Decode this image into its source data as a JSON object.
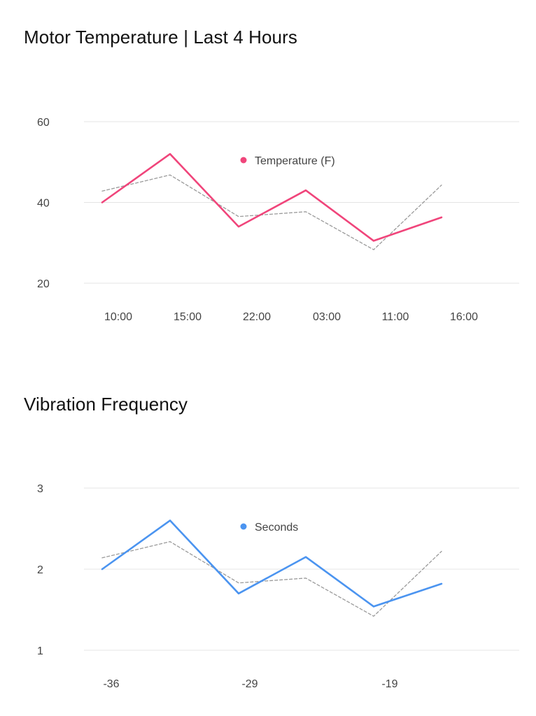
{
  "chart_data": [
    {
      "type": "line",
      "title": "Motor Temperature | Last 4 Hours",
      "categories": [
        "10:00",
        "15:00",
        "22:00",
        "03:00",
        "11:00",
        "16:00"
      ],
      "yticks": [
        "60",
        "40",
        "20"
      ],
      "ylim": [
        20,
        60
      ],
      "series": [
        {
          "name": "Temperature (F)",
          "color": "#f0457b",
          "style": "solid",
          "values": [
            40,
            52,
            34,
            43,
            30.5,
            36.3
          ]
        },
        {
          "name": "trend",
          "color": "#9a9a9a",
          "style": "dashed",
          "values": [
            42.8,
            46.8,
            36.5,
            37.7,
            28.3,
            44.3
          ]
        }
      ],
      "legend": {
        "label": "Temperature (F)",
        "placement": "top-center"
      }
    },
    {
      "type": "line",
      "title": "Vibration Frequency",
      "categories": [
        "-36",
        "",
        "-29",
        "",
        "-19",
        ""
      ],
      "yticks": [
        "3",
        "2",
        "1"
      ],
      "ylim": [
        1,
        3
      ],
      "series": [
        {
          "name": "Seconds",
          "color": "#4b94f0",
          "style": "solid",
          "values": [
            2.0,
            2.6,
            1.7,
            2.15,
            1.54,
            1.82
          ]
        },
        {
          "name": "trend",
          "color": "#9a9a9a",
          "style": "dashed",
          "values": [
            2.14,
            2.34,
            1.83,
            1.89,
            1.42,
            2.22
          ]
        }
      ],
      "legend": {
        "label": "Seconds",
        "placement": "top-center"
      }
    }
  ]
}
